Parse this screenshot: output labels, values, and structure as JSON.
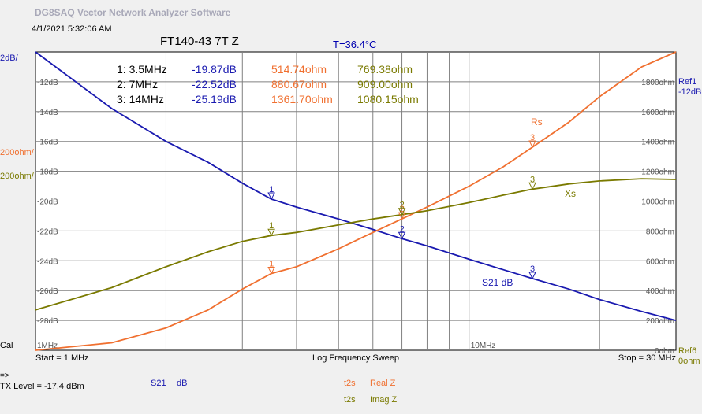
{
  "app_title": "DG8SAQ Vector Network Analyzer Software",
  "timestamp": "4/1/2021   5:32:06 AM",
  "plot_title": "FT140-43 7T Z",
  "temperature": "T=36.4°C",
  "left_axis_scale_s21": "2dB/",
  "left_axis_scale_rs": "200ohm/",
  "left_axis_scale_xs": "200ohm/",
  "ref1_label": "Ref1",
  "ref1_value": "-12dB",
  "ref6_label": "Ref6",
  "ref6_value": "0ohm",
  "cal_label": "Cal",
  "start_label": "Start = 1 MHz",
  "sweep_label": "Log Frequency Sweep",
  "stop_label": "Stop = 30 MHz",
  "arrow_label": "=>",
  "tx_level": "TX Level = -17.4 dBm",
  "legend": {
    "s21_name": "S21",
    "s21_unit": "dB",
    "t2s_a": "t2s",
    "real_z": "Real Z",
    "t2s_b": "t2s",
    "imag_z": "Imag Z"
  },
  "markers_table": [
    {
      "label": "1: 3.5MHz",
      "s21": "-19.87dB",
      "rs": "514.74ohm",
      "xs": "769.38ohm"
    },
    {
      "label": "2: 7MHz",
      "s21": "-22.52dB",
      "rs": "880.67ohm",
      "xs": "909.00ohm"
    },
    {
      "label": "3: 14MHz",
      "s21": "-25.19dB",
      "rs": "1361.70ohm",
      "xs": "1080.15ohm"
    }
  ],
  "colors": {
    "s21": "#1a1ab0",
    "rs": "#f07030",
    "xs": "#7a7a00",
    "grid": "#808080",
    "plot_bg": "#ffffff"
  },
  "chart_data": {
    "type": "line",
    "x_scale": "log",
    "xlim": [
      1,
      30
    ],
    "x_unit": "MHz",
    "x_tick_labels": [
      "1MHz",
      "10MHz"
    ],
    "left_ylim": [
      -30,
      -10
    ],
    "left_tick_labels": [
      "-12dB",
      "-14dB",
      "-16dB",
      "-18dB",
      "-20dB",
      "-22dB",
      "-24dB",
      "-26dB",
      "-28dB"
    ],
    "left_tick_values": [
      -12,
      -14,
      -16,
      -18,
      -20,
      -22,
      -24,
      -26,
      -28
    ],
    "right_ylim": [
      0,
      2000
    ],
    "right_tick_labels": [
      "1800ohm",
      "1600ohm",
      "1400ohm",
      "1200ohm",
      "1000ohm",
      "800ohm",
      "600ohm",
      "400ohm",
      "200ohm",
      "0ohm"
    ],
    "right_tick_values": [
      1800,
      1600,
      1400,
      1200,
      1000,
      800,
      600,
      400,
      200,
      0
    ],
    "grid": true,
    "series": [
      {
        "name": "S21 dB",
        "axis": "left",
        "x": [
          1,
          1.5,
          2,
          2.5,
          3,
          3.5,
          4,
          5,
          6,
          7,
          8,
          10,
          12,
          14,
          17,
          20,
          25,
          30
        ],
        "values": [
          -10,
          -13.8,
          -16.0,
          -17.4,
          -18.8,
          -19.87,
          -20.4,
          -21.2,
          -21.9,
          -22.52,
          -23.0,
          -23.9,
          -24.6,
          -25.19,
          -25.9,
          -26.6,
          -27.4,
          -28.0
        ]
      },
      {
        "name": "Rs",
        "axis": "right",
        "x": [
          1,
          1.5,
          2,
          2.5,
          3,
          3.5,
          4,
          5,
          6,
          7,
          8,
          10,
          12,
          14,
          17,
          20,
          25,
          30
        ],
        "values": [
          0,
          50,
          150,
          270,
          410,
          514.74,
          560,
          680,
          790,
          880.67,
          960,
          1100,
          1230,
          1361.7,
          1530,
          1700,
          1900,
          2000
        ]
      },
      {
        "name": "Xs",
        "axis": "right",
        "x": [
          1,
          1.5,
          2,
          2.5,
          3,
          3.5,
          4,
          5,
          6,
          7,
          8,
          10,
          12,
          14,
          17,
          20,
          25,
          30
        ],
        "values": [
          270,
          420,
          560,
          660,
          730,
          769.38,
          790,
          840,
          880,
          909.0,
          935,
          990,
          1040,
          1080.15,
          1115,
          1135,
          1150,
          1145
        ]
      }
    ],
    "markers": [
      {
        "id": "1",
        "x": 3.5,
        "s21": -19.87,
        "rs": 514.74,
        "xs": 769.38
      },
      {
        "id": "2",
        "x": 7,
        "s21": -22.52,
        "rs": 880.67,
        "xs": 909.0
      },
      {
        "id": "3",
        "x": 14,
        "s21": -25.19,
        "rs": 1361.7,
        "xs": 1080.15
      }
    ],
    "trace_labels": [
      {
        "text": "Rs",
        "series": "Rs"
      },
      {
        "text": "Xs",
        "series": "Xs"
      },
      {
        "text": "S21 dB",
        "series": "S21 dB"
      }
    ]
  }
}
